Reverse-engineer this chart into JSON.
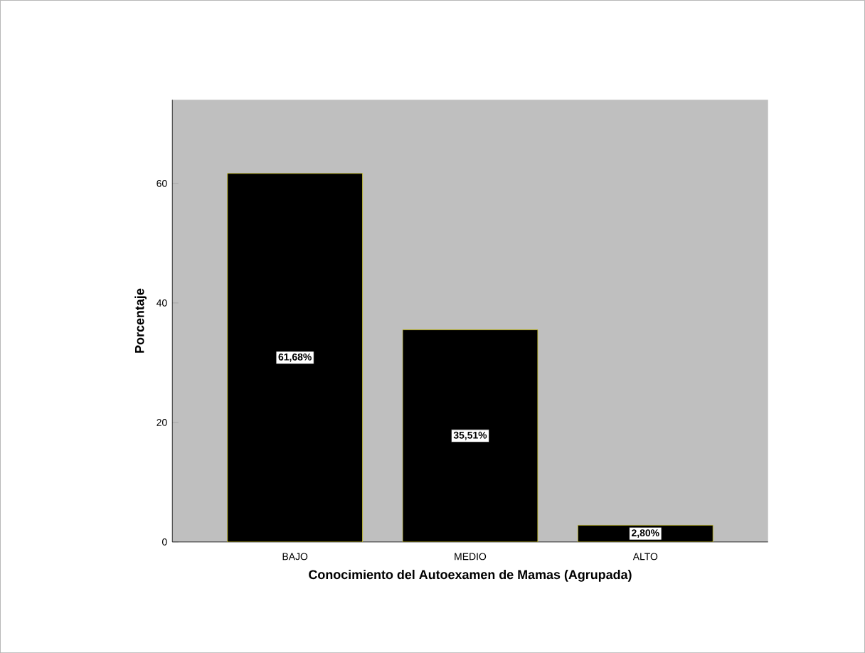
{
  "chart_data": {
    "type": "bar",
    "xlabel": "Conocimiento del Autoexamen de Mamas (Agrupada)",
    "ylabel": "Porcentaje",
    "categories": [
      "BAJO",
      "MEDIO",
      "ALTO"
    ],
    "values": [
      61.68,
      35.51,
      2.8
    ],
    "value_labels": [
      "61,68%",
      "35,51%",
      "2,80%"
    ],
    "color": "#000000",
    "ylim": [
      0,
      74
    ],
    "yticks": [
      0,
      20,
      40,
      60
    ],
    "grid": false
  }
}
